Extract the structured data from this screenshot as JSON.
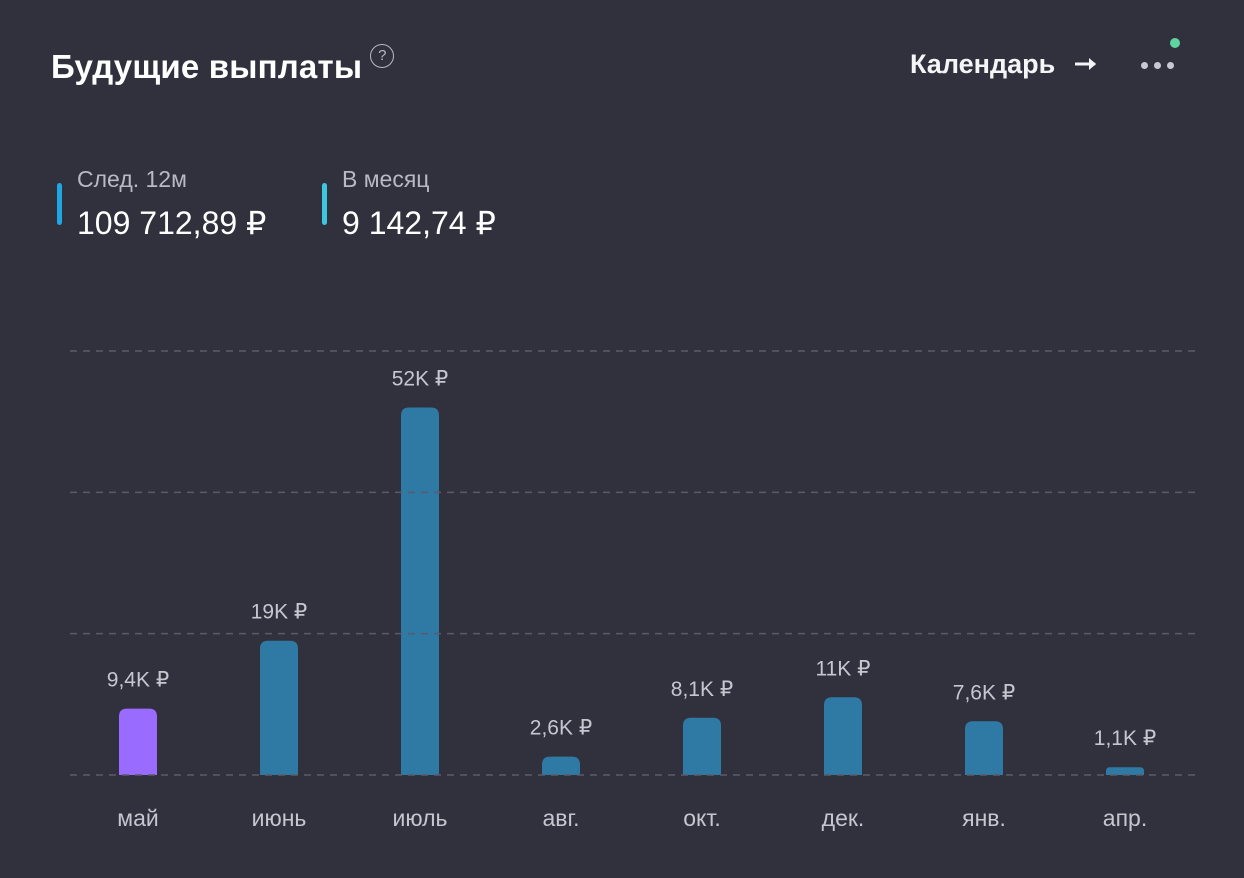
{
  "header": {
    "title": "Будущие выплаты",
    "help_icon": "question-circle-icon",
    "calendar_label": "Календарь",
    "arrow_icon": "arrow-right-icon",
    "more_icon": "more-dots-icon",
    "notification_color": "#5fd4a0"
  },
  "stats": [
    {
      "label": "След. 12м",
      "value": "109 712,89 ₽",
      "color": "#1ea7e4"
    },
    {
      "label": "В месяц",
      "value": "9 142,74 ₽",
      "color": "#3ec6e0"
    }
  ],
  "chart_data": {
    "type": "bar",
    "categories": [
      "май",
      "июнь",
      "июль",
      "авг.",
      "окт.",
      "дек.",
      "янв.",
      "апр."
    ],
    "values": [
      9400,
      19000,
      52000,
      2600,
      8100,
      11000,
      7600,
      1100
    ],
    "value_labels": [
      "9,4K ₽",
      "19K ₽",
      "52K ₽",
      "2,6K ₽",
      "8,1K ₽",
      "11K ₽",
      "7,6K ₽",
      "1,1K ₽"
    ],
    "highlight_index": 0,
    "colors": {
      "default": "#2f79a5",
      "highlight": "#9a6bff"
    },
    "ylim": [
      0,
      60000
    ],
    "gridlines": [
      0,
      20000,
      40000,
      60000
    ],
    "grid": true
  }
}
